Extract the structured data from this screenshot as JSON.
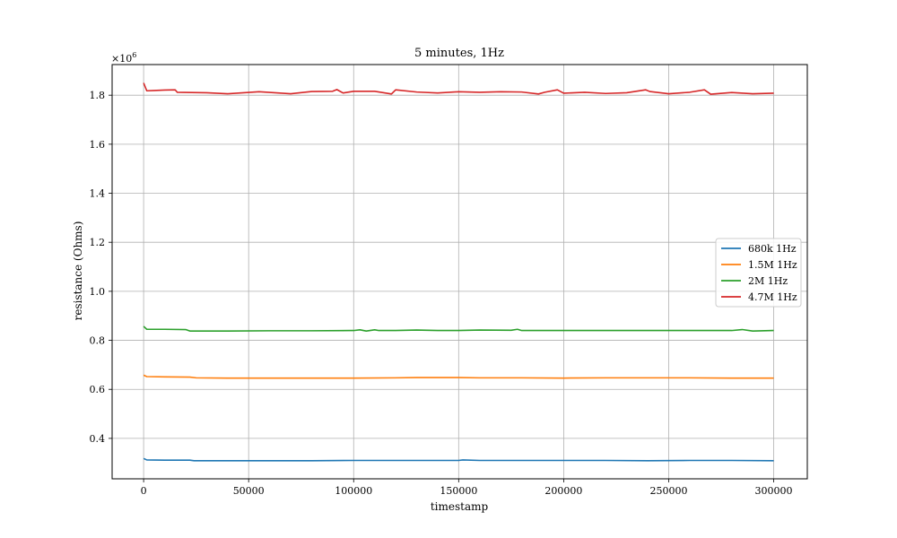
{
  "chart_data": {
    "type": "line",
    "title": "5 minutes, 1Hz",
    "xlabel": "timestamp",
    "ylabel": "resistance (Ohms)",
    "y_scale_label_base": "×10",
    "y_scale_label_exp": "6",
    "xlim": [
      -15000,
      316000
    ],
    "ylim": [
      0.235,
      1.925
    ],
    "x_ticks": [
      0,
      50000,
      100000,
      150000,
      200000,
      250000,
      300000
    ],
    "x_tick_labels": [
      "0",
      "50000",
      "100000",
      "150000",
      "200000",
      "250000",
      "300000"
    ],
    "y_ticks": [
      0.4,
      0.6,
      0.8,
      1.0,
      1.2,
      1.4,
      1.6,
      1.8
    ],
    "y_tick_labels": [
      "0.4",
      "0.6",
      "0.8",
      "1.0",
      "1.2",
      "1.4",
      "1.6",
      "1.8"
    ],
    "grid": true,
    "legend_position": "center-right",
    "series": [
      {
        "name": "680k 1Hz",
        "color": "#1f77b4",
        "x": [
          0,
          1500,
          10000,
          22000,
          24000,
          40000,
          60000,
          80000,
          100000,
          120000,
          140000,
          150000,
          152000,
          160000,
          180000,
          200000,
          220000,
          240000,
          260000,
          280000,
          300000
        ],
        "y": [
          0.318,
          0.312,
          0.311,
          0.311,
          0.309,
          0.309,
          0.309,
          0.309,
          0.31,
          0.31,
          0.31,
          0.31,
          0.312,
          0.31,
          0.31,
          0.31,
          0.31,
          0.309,
          0.31,
          0.31,
          0.309
        ]
      },
      {
        "name": "1.5M 1Hz",
        "color": "#ff7f0e",
        "x": [
          0,
          1500,
          10000,
          22000,
          25000,
          40000,
          60000,
          80000,
          100000,
          120000,
          130000,
          150000,
          160000,
          180000,
          200000,
          220000,
          240000,
          260000,
          280000,
          300000
        ],
        "y": [
          0.658,
          0.652,
          0.651,
          0.65,
          0.647,
          0.646,
          0.646,
          0.646,
          0.646,
          0.647,
          0.648,
          0.648,
          0.647,
          0.647,
          0.646,
          0.647,
          0.647,
          0.647,
          0.646,
          0.646
        ]
      },
      {
        "name": "2M 1Hz",
        "color": "#2ca02c",
        "x": [
          0,
          1500,
          10000,
          20000,
          22000,
          40000,
          60000,
          80000,
          100000,
          103000,
          106000,
          110000,
          112000,
          120000,
          130000,
          140000,
          150000,
          160000,
          175000,
          178000,
          180000,
          200000,
          220000,
          240000,
          260000,
          280000,
          285000,
          290000,
          300000
        ],
        "y": [
          0.857,
          0.845,
          0.845,
          0.844,
          0.838,
          0.838,
          0.839,
          0.839,
          0.84,
          0.843,
          0.838,
          0.843,
          0.84,
          0.84,
          0.842,
          0.84,
          0.84,
          0.842,
          0.841,
          0.845,
          0.84,
          0.84,
          0.84,
          0.84,
          0.84,
          0.84,
          0.844,
          0.838,
          0.84
        ]
      },
      {
        "name": "4.7M 1Hz",
        "color": "#d62728",
        "x": [
          0,
          1500,
          5000,
          10000,
          15000,
          16000,
          30000,
          40000,
          55000,
          70000,
          80000,
          90000,
          92000,
          95000,
          100000,
          110000,
          118000,
          120000,
          130000,
          140000,
          150000,
          160000,
          170000,
          180000,
          188000,
          191000,
          197000,
          200000,
          210000,
          220000,
          230000,
          239000,
          241000,
          250000,
          260000,
          267000,
          270000,
          280000,
          290000,
          300000
        ],
        "y": [
          1.85,
          1.818,
          1.819,
          1.821,
          1.822,
          1.812,
          1.81,
          1.806,
          1.814,
          1.806,
          1.815,
          1.816,
          1.823,
          1.809,
          1.816,
          1.816,
          1.805,
          1.822,
          1.813,
          1.809,
          1.814,
          1.812,
          1.814,
          1.813,
          1.805,
          1.812,
          1.822,
          1.808,
          1.812,
          1.807,
          1.81,
          1.822,
          1.815,
          1.806,
          1.812,
          1.822,
          1.804,
          1.811,
          1.806,
          1.808
        ]
      }
    ]
  }
}
